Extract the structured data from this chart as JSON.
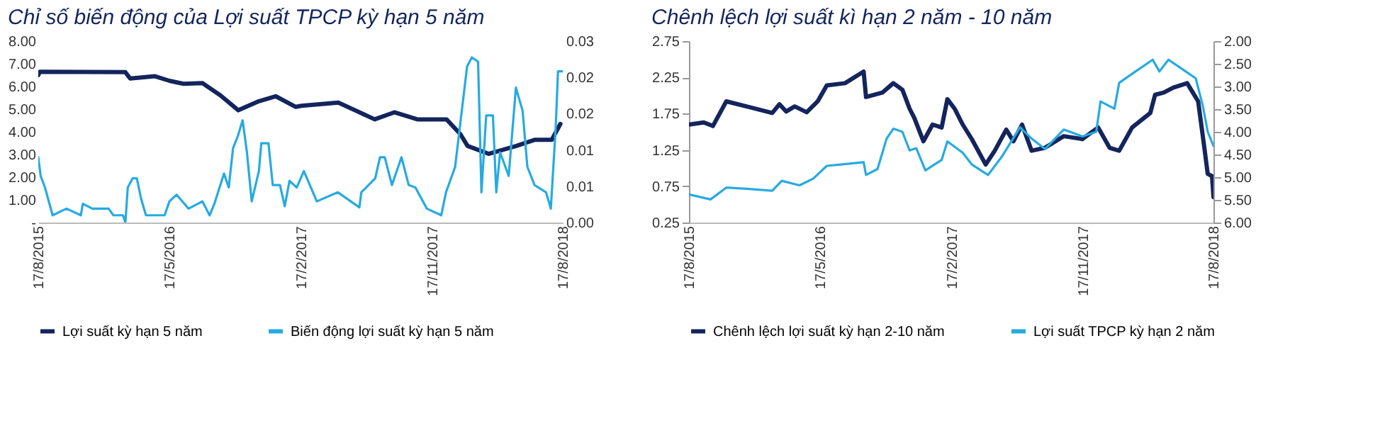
{
  "chart_data": [
    {
      "type": "line",
      "title": "Chỉ số biến động của Lợi suất TPCP kỳ hạn 5 năm",
      "legend": "bottom",
      "xlim": [
        "2015-08-17",
        "2018-08-17"
      ],
      "xticks": [
        {
          "value": "2015-08-17",
          "label": "17/8/2015"
        },
        {
          "value": "2016-05-17",
          "label": "17/5/2016"
        },
        {
          "value": "2017-02-17",
          "label": "17/2/2017"
        },
        {
          "value": "2017-11-17",
          "label": "17/11/2017"
        },
        {
          "value": "2018-08-17",
          "label": "17/8/2018"
        }
      ],
      "ylim": [
        0,
        8
      ],
      "yticks": [
        {
          "value": 0,
          "label": "-"
        },
        {
          "value": 1,
          "label": "1.00"
        },
        {
          "value": 2,
          "label": "2.00"
        },
        {
          "value": 3,
          "label": "3.00"
        },
        {
          "value": 4,
          "label": "4.00"
        },
        {
          "value": 5,
          "label": "5.00"
        },
        {
          "value": 6,
          "label": "6.00"
        },
        {
          "value": 7,
          "label": "7.00"
        },
        {
          "value": 8,
          "label": "8.00"
        }
      ],
      "y2lim": [
        0,
        0.03
      ],
      "y2ticks": [
        {
          "value": 0,
          "label": "0.00"
        },
        {
          "value": 0.006,
          "label": "0.01"
        },
        {
          "value": 0.012,
          "label": "0.01"
        },
        {
          "value": 0.018,
          "label": "0.02"
        },
        {
          "value": 0.024,
          "label": "0.02"
        },
        {
          "value": 0.03,
          "label": "0.03"
        }
      ],
      "series": [
        {
          "name": "Lợi suất kỳ hạn 5 năm",
          "color": "#14245c",
          "x": [
            "2015-08-17",
            "2015-08-20",
            "2016-02-15",
            "2016-02-25",
            "2016-04-17",
            "2016-05-17",
            "2016-06-15",
            "2016-07-25",
            "2016-09-01",
            "2016-10-08",
            "2016-11-20",
            "2016-12-25",
            "2017-02-05",
            "2017-02-17",
            "2017-05-05",
            "2017-07-20",
            "2017-08-30",
            "2017-10-17",
            "2017-12-17",
            "2018-01-15",
            "2018-01-30",
            "2018-03-15",
            "2018-05-12",
            "2018-06-20",
            "2018-07-25",
            "2018-08-12"
          ],
          "values": [
            6.5,
            6.65,
            6.63,
            6.35,
            6.45,
            6.25,
            6.12,
            6.15,
            5.6,
            4.95,
            5.35,
            5.57,
            5.1,
            5.15,
            5.29,
            4.55,
            4.86,
            4.55,
            4.55,
            3.9,
            3.38,
            3.03,
            3.38,
            3.65,
            3.65,
            4.35
          ]
        },
        {
          "name": "Biến động lợi suất kỳ hạn 5 năm",
          "color": "#27aae1",
          "axis": "y2",
          "x": [
            "2015-08-17",
            "2015-08-22",
            "2015-08-31",
            "2015-09-16",
            "2015-10-15",
            "2015-11-14",
            "2015-11-18",
            "2015-12-08",
            "2016-01-11",
            "2016-01-21",
            "2016-02-10",
            "2016-02-15",
            "2016-02-20",
            "2016-03-01",
            "2016-03-10",
            "2016-03-19",
            "2016-03-29",
            "2016-05-07",
            "2016-05-17",
            "2016-06-01",
            "2016-06-26",
            "2016-07-25",
            "2016-08-09",
            "2016-08-19",
            "2016-09-08",
            "2016-09-18",
            "2016-09-27",
            "2016-10-07",
            "2016-10-17",
            "2016-10-26",
            "2016-11-05",
            "2016-11-20",
            "2016-11-25",
            "2016-12-10",
            "2016-12-19",
            "2017-01-03",
            "2017-01-13",
            "2017-01-23",
            "2017-02-07",
            "2017-02-22",
            "2017-03-21",
            "2017-05-04",
            "2017-06-18",
            "2017-06-22",
            "2017-07-21",
            "2017-07-31",
            "2017-08-10",
            "2017-08-25",
            "2017-09-14",
            "2017-09-29",
            "2017-10-13",
            "2017-11-06",
            "2017-12-06",
            "2017-12-16",
            "2018-01-04",
            "2018-01-29",
            "2018-02-08",
            "2018-02-21",
            "2018-02-28",
            "2018-03-10",
            "2018-03-24",
            "2018-03-31",
            "2018-04-08",
            "2018-04-26",
            "2018-05-11",
            "2018-05-25",
            "2018-06-04",
            "2018-06-19",
            "2018-07-13",
            "2018-07-23",
            "2018-08-02",
            "2018-08-07",
            "2018-08-17"
          ],
          "values": [
            0.0108,
            0.0077,
            0.0058,
            0.0012,
            0.0023,
            0.0012,
            0.0031,
            0.0023,
            0.0023,
            0.0012,
            0.0012,
            0,
            0.0058,
            0.0073,
            0.0073,
            0.0039,
            0.0012,
            0.0012,
            0.0035,
            0.0046,
            0.0023,
            0.0035,
            0.0012,
            0.0031,
            0.0081,
            0.0058,
            0.0123,
            0.0143,
            0.0169,
            0.0116,
            0.0035,
            0.0085,
            0.0131,
            0.0131,
            0.0062,
            0.0062,
            0.0027,
            0.0069,
            0.0058,
            0.0085,
            0.0035,
            0.005,
            0.0025,
            0.005,
            0.0073,
            0.0108,
            0.0108,
            0.0062,
            0.0108,
            0.0062,
            0.0058,
            0.0023,
            0.0012,
            0.005,
            0.0092,
            0.0258,
            0.0273,
            0.0266,
            0.005,
            0.0177,
            0.0177,
            0.005,
            0.0116,
            0.0077,
            0.0223,
            0.0185,
            0.0092,
            0.0062,
            0.005,
            0.0023,
            0.0154,
            0.025,
            0.025
          ]
        }
      ]
    },
    {
      "type": "line",
      "title": "Chênh lệch lợi suất kì hạn 2 năm - 10 năm",
      "legend": "bottom",
      "xlim": [
        "2015-08-17",
        "2018-08-17"
      ],
      "xticks": [
        {
          "value": "2015-08-17",
          "label": "17/8/2015"
        },
        {
          "value": "2016-05-17",
          "label": "17/5/2016"
        },
        {
          "value": "2017-02-17",
          "label": "17/2/2017"
        },
        {
          "value": "2017-11-17",
          "label": "17/11/2017"
        },
        {
          "value": "2018-08-17",
          "label": "17/8/2018"
        }
      ],
      "ylim": [
        0.25,
        2.75
      ],
      "yticks": [
        0.25,
        0.75,
        1.25,
        1.75,
        2.25,
        2.75
      ],
      "y2lim": [
        6,
        2
      ],
      "y2ticks": [
        {
          "value": 2,
          "label": "2.00"
        },
        {
          "value": 2.5,
          "label": "2.50"
        },
        {
          "value": 3,
          "label": "3.00"
        },
        {
          "value": 3.5,
          "label": "3.50"
        },
        {
          "value": 4,
          "label": "4.00"
        },
        {
          "value": 4.5,
          "label": "4.50"
        },
        {
          "value": 5,
          "label": "5.00"
        },
        {
          "value": 5.5,
          "label": "5.50"
        },
        {
          "value": 6,
          "label": "6.00"
        }
      ],
      "series": [
        {
          "name": "Chênh lệch lợi suất kỳ hạn 2-10 năm",
          "color": "#14245c",
          "x": [
            "2015-08-17",
            "2015-09-17",
            "2015-10-06",
            "2015-11-03",
            "2015-12-21",
            "2016-02-07",
            "2016-02-22",
            "2016-03-07",
            "2016-03-25",
            "2016-04-19",
            "2016-05-12",
            "2016-05-31",
            "2016-07-08",
            "2016-08-16",
            "2016-08-21",
            "2016-09-24",
            "2016-10-17",
            "2016-11-05",
            "2016-11-20",
            "2016-11-30",
            "2016-12-19",
            "2017-01-07",
            "2017-01-26",
            "2017-02-07",
            "2017-02-22",
            "2017-03-11",
            "2017-03-30",
            "2017-04-28",
            "2017-05-17",
            "2017-06-10",
            "2017-06-25",
            "2017-07-13",
            "2017-08-02",
            "2017-08-30",
            "2017-10-08",
            "2017-11-16",
            "2017-12-19",
            "2018-01-12",
            "2018-02-01",
            "2018-02-28",
            "2018-04-07",
            "2018-04-17",
            "2018-05-05",
            "2018-05-25",
            "2018-06-23",
            "2018-07-16",
            "2018-07-29",
            "2018-08-05",
            "2018-08-14",
            "2018-08-17"
          ],
          "values": [
            1.6,
            1.63,
            1.58,
            1.92,
            1.84,
            1.76,
            1.88,
            1.78,
            1.85,
            1.77,
            1.92,
            2.14,
            2.17,
            2.33,
            1.98,
            2.04,
            2.17,
            2.08,
            1.82,
            1.69,
            1.37,
            1.6,
            1.56,
            1.95,
            1.82,
            1.6,
            1.4,
            1.05,
            1.24,
            1.53,
            1.37,
            1.6,
            1.24,
            1.28,
            1.44,
            1.4,
            1.56,
            1.28,
            1.24,
            1.56,
            1.76,
            2.01,
            2.04,
            2.11,
            2.17,
            1.92,
            1.28,
            0.92,
            0.89,
            0.6
          ]
        },
        {
          "name": "Lợi suất TPCP kỳ hạn 2 năm",
          "color": "#27aae1",
          "axis": "y2",
          "x": [
            "2015-08-17",
            "2015-10-01",
            "2015-11-03",
            "2015-12-21",
            "2016-02-07",
            "2016-02-27",
            "2016-04-04",
            "2016-05-03",
            "2016-05-31",
            "2016-06-29",
            "2016-08-16",
            "2016-08-21",
            "2016-09-14",
            "2016-10-03",
            "2016-10-17",
            "2016-11-05",
            "2016-11-20",
            "2016-12-04",
            "2016-12-23",
            "2017-01-26",
            "2017-02-07",
            "2017-03-11",
            "2017-03-30",
            "2017-05-03",
            "2017-05-31",
            "2017-07-09",
            "2017-08-02",
            "2017-08-30",
            "2017-10-08",
            "2017-11-16",
            "2017-12-15",
            "2017-12-24",
            "2018-01-22",
            "2018-02-01",
            "2018-02-28",
            "2018-04-12",
            "2018-04-26",
            "2018-05-15",
            "2018-06-13",
            "2018-07-11",
            "2018-07-26",
            "2018-08-05",
            "2018-08-17"
          ],
          "values": [
            5.38,
            5.49,
            5.23,
            5.26,
            5.3,
            5.08,
            5.18,
            5.03,
            4.75,
            4.72,
            4.67,
            4.95,
            4.82,
            4.15,
            3.93,
            4.0,
            4.41,
            4.36,
            4.85,
            4.62,
            4.21,
            4.46,
            4.72,
            4.95,
            4.56,
            3.9,
            4.15,
            4.38,
            3.95,
            4.1,
            4.0,
            3.33,
            3.49,
            2.92,
            2.72,
            2.41,
            2.67,
            2.41,
            2.62,
            2.82,
            3.44,
            4.0,
            4.31
          ]
        }
      ]
    }
  ]
}
